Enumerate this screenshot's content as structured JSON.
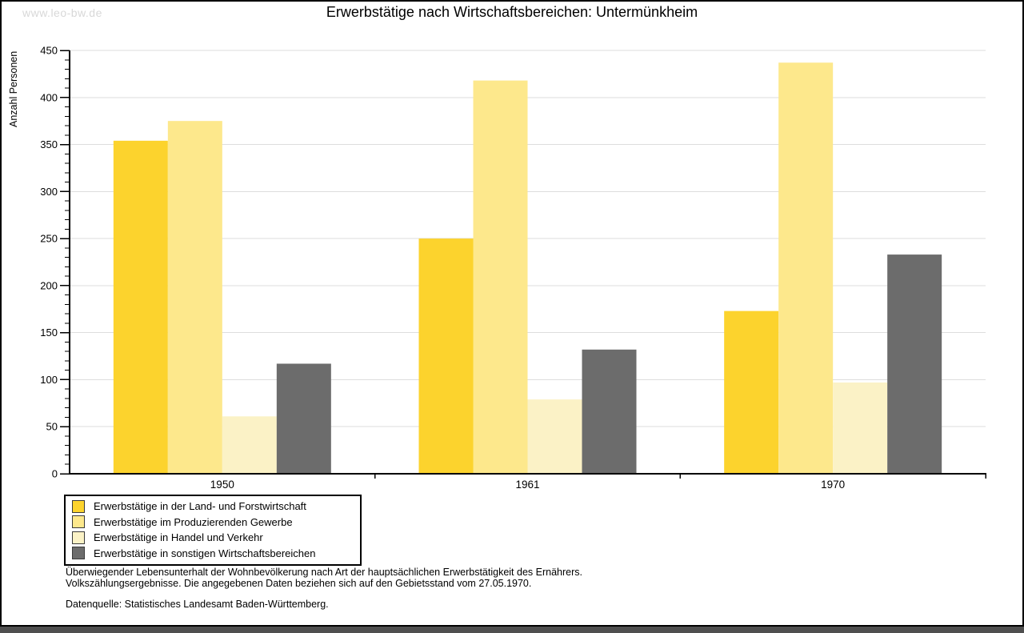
{
  "watermark": "www.leo-bw.de",
  "title": "Erwerbstätige nach Wirtschaftsbereichen: Untermünkheim",
  "chart_data": {
    "type": "bar",
    "title": "Erwerbstätige nach Wirtschaftsbereichen: Untermünkheim",
    "categories": [
      "1950",
      "1961",
      "1970"
    ],
    "series": [
      {
        "name": "Erwerbstätige in der Land- und Forstwirtschaft",
        "color": "#fcd32d",
        "values": [
          354,
          250,
          173
        ]
      },
      {
        "name": "Erwerbstätige im Produzierenden Gewerbe",
        "color": "#fde88c",
        "values": [
          375,
          418,
          437
        ]
      },
      {
        "name": "Erwerbstätige in Handel und Verkehr",
        "color": "#fbf2c6",
        "values": [
          61,
          79,
          97
        ]
      },
      {
        "name": "Erwerbstätige in sonstigen Wirtschaftsbereichen",
        "color": "#6c6c6c",
        "values": [
          117,
          132,
          233
        ]
      }
    ],
    "ylabel": "Anzahl Personen",
    "xlabel": "",
    "ylim": [
      0,
      450
    ],
    "ytick_step": 50,
    "yminor_step": 10,
    "grid": true,
    "grid_color": "#dddddd",
    "axis_color": "#000000",
    "legend_position": "bottom-left"
  },
  "footer": {
    "line1": "Überwiegender Lebensunterhalt der Wohnbevölkerung nach Art der hauptsächlichen Erwerbstätigkeit des Ernährers.",
    "line2": "Volkszählungsergebnisse. Die angegebenen Daten beziehen sich auf den Gebietsstand vom 27.05.1970.",
    "source": "Datenquelle: Statistisches Landesamt Baden-Württemberg."
  }
}
